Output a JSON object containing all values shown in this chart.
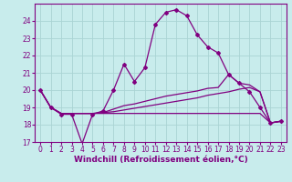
{
  "background_color": "#c8ecec",
  "grid_color": "#aad4d4",
  "line_color": "#800080",
  "xlabel": "Windchill (Refroidissement éolien,°C)",
  "xlabel_fontsize": 6.5,
  "tick_fontsize": 5.5,
  "xlim": [
    -0.5,
    23.5
  ],
  "ylim": [
    17,
    25
  ],
  "yticks": [
    17,
    18,
    19,
    20,
    21,
    22,
    23,
    24
  ],
  "xticks": [
    0,
    1,
    2,
    3,
    4,
    5,
    6,
    7,
    8,
    9,
    10,
    11,
    12,
    13,
    14,
    15,
    16,
    17,
    18,
    19,
    20,
    21,
    22,
    23
  ],
  "series1_x": [
    0,
    1,
    2,
    3,
    4,
    5,
    6,
    7,
    8,
    9,
    10,
    11,
    12,
    13,
    14,
    15,
    16,
    17,
    18,
    19,
    20,
    21,
    22,
    23
  ],
  "series1_y": [
    20.0,
    19.0,
    18.6,
    18.6,
    16.9,
    18.6,
    18.8,
    20.0,
    21.5,
    20.5,
    21.3,
    23.8,
    24.5,
    24.65,
    24.3,
    23.2,
    22.5,
    22.15,
    20.9,
    20.4,
    19.9,
    19.0,
    18.1,
    18.2
  ],
  "series2_x": [
    0,
    1,
    2,
    3,
    4,
    5,
    6,
    7,
    8,
    9,
    10,
    11,
    12,
    13,
    14,
    15,
    16,
    17,
    18,
    19,
    20,
    21,
    22,
    23
  ],
  "series2_y": [
    20.0,
    19.0,
    18.65,
    18.65,
    18.65,
    18.65,
    18.7,
    18.9,
    19.1,
    19.2,
    19.35,
    19.5,
    19.65,
    19.75,
    19.85,
    19.95,
    20.1,
    20.15,
    20.9,
    20.4,
    20.3,
    19.9,
    18.1,
    18.2
  ],
  "series3_x": [
    0,
    1,
    2,
    3,
    4,
    5,
    6,
    7,
    8,
    9,
    10,
    11,
    12,
    13,
    14,
    15,
    16,
    17,
    18,
    19,
    20,
    21,
    22,
    23
  ],
  "series3_y": [
    20.0,
    19.0,
    18.65,
    18.65,
    18.65,
    18.65,
    18.65,
    18.65,
    18.65,
    18.65,
    18.65,
    18.65,
    18.65,
    18.65,
    18.65,
    18.65,
    18.65,
    18.65,
    18.65,
    18.65,
    18.65,
    18.65,
    18.1,
    18.2
  ],
  "series4_x": [
    0,
    1,
    2,
    3,
    4,
    5,
    6,
    7,
    8,
    9,
    10,
    11,
    12,
    13,
    14,
    15,
    16,
    17,
    18,
    19,
    20,
    21,
    22,
    23
  ],
  "series4_y": [
    20.0,
    19.0,
    18.65,
    18.65,
    18.65,
    18.65,
    18.7,
    18.75,
    18.85,
    18.95,
    19.05,
    19.15,
    19.25,
    19.35,
    19.45,
    19.55,
    19.7,
    19.8,
    19.9,
    20.05,
    20.15,
    19.9,
    18.1,
    18.2
  ]
}
